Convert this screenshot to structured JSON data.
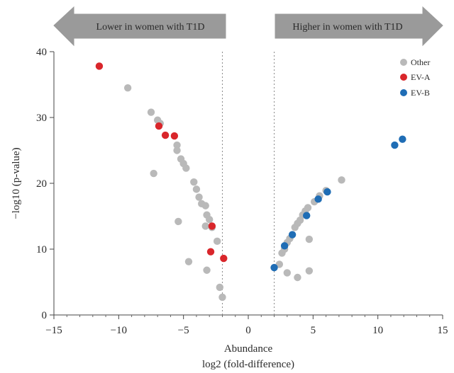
{
  "chart_data": {
    "type": "scatter",
    "title": "",
    "xlabel": "Abundance",
    "xlabel_sub": "log2 (fold-difference)",
    "ylabel": "−log10 (p-value)",
    "xlim": [
      -15,
      15
    ],
    "ylim": [
      0,
      40
    ],
    "xticks": [
      -15,
      -10,
      -5,
      0,
      5,
      10,
      15
    ],
    "xtick_labels": [
      "−15",
      "−10",
      "−5",
      "0",
      "5",
      "10",
      "15"
    ],
    "yticks": [
      0,
      10,
      20,
      30,
      40
    ],
    "ytick_labels": [
      "0",
      "10",
      "20",
      "30",
      "40"
    ],
    "threshold_lines_x": [
      -2,
      2
    ],
    "grid": false,
    "legend_position": "top-right",
    "arrows": {
      "left": "Lower in women with T1D",
      "right": "Higher in women with T1D"
    },
    "colors": {
      "Other": "#b9b9b9",
      "EV-A": "#d9262b",
      "EV-B": "#1f6db5",
      "arrow_fill": "#9a9a9a",
      "threshold": "#8a8a8a"
    },
    "series": [
      {
        "name": "Other",
        "x": [
          -9.3,
          -7.5,
          -7.3,
          -7.0,
          -6.8,
          -5.5,
          -5.5,
          -5.2,
          -5.0,
          -4.8,
          -4.2,
          -4.0,
          -3.8,
          -3.6,
          -3.3,
          -3.2,
          -3.0,
          -2.8,
          -3.3,
          -2.4,
          -4.6,
          -3.2,
          -5.4,
          -2.2,
          -2.0,
          2.4,
          2.6,
          2.8,
          3.0,
          3.2,
          3.6,
          3.8,
          4.0,
          4.2,
          4.4,
          4.6,
          5.1,
          5.5,
          6.0,
          7.2,
          4.7,
          3.0,
          3.8,
          4.7
        ],
        "y": [
          34.5,
          30.8,
          21.5,
          29.6,
          29.1,
          25.8,
          25.0,
          23.7,
          23.0,
          22.3,
          20.2,
          19.1,
          17.9,
          16.9,
          16.6,
          15.2,
          14.5,
          13.3,
          13.5,
          11.2,
          8.1,
          6.8,
          14.2,
          4.2,
          2.7,
          7.7,
          9.4,
          10.0,
          11.0,
          11.6,
          13.3,
          13.9,
          14.4,
          15.2,
          15.8,
          16.3,
          17.2,
          18.1,
          18.9,
          20.5,
          11.5,
          6.4,
          5.7,
          6.7
        ]
      },
      {
        "name": "EV-A",
        "x": [
          -11.5,
          -6.9,
          -6.4,
          -5.7,
          -2.8,
          -2.9,
          -1.9
        ],
        "y": [
          37.8,
          28.7,
          27.3,
          27.2,
          13.5,
          9.6,
          8.6
        ]
      },
      {
        "name": "EV-B",
        "x": [
          2.0,
          2.8,
          3.4,
          4.5,
          5.4,
          6.1,
          11.3,
          11.9
        ],
        "y": [
          7.2,
          10.5,
          12.2,
          15.1,
          17.6,
          18.7,
          25.8,
          26.7
        ]
      }
    ]
  }
}
